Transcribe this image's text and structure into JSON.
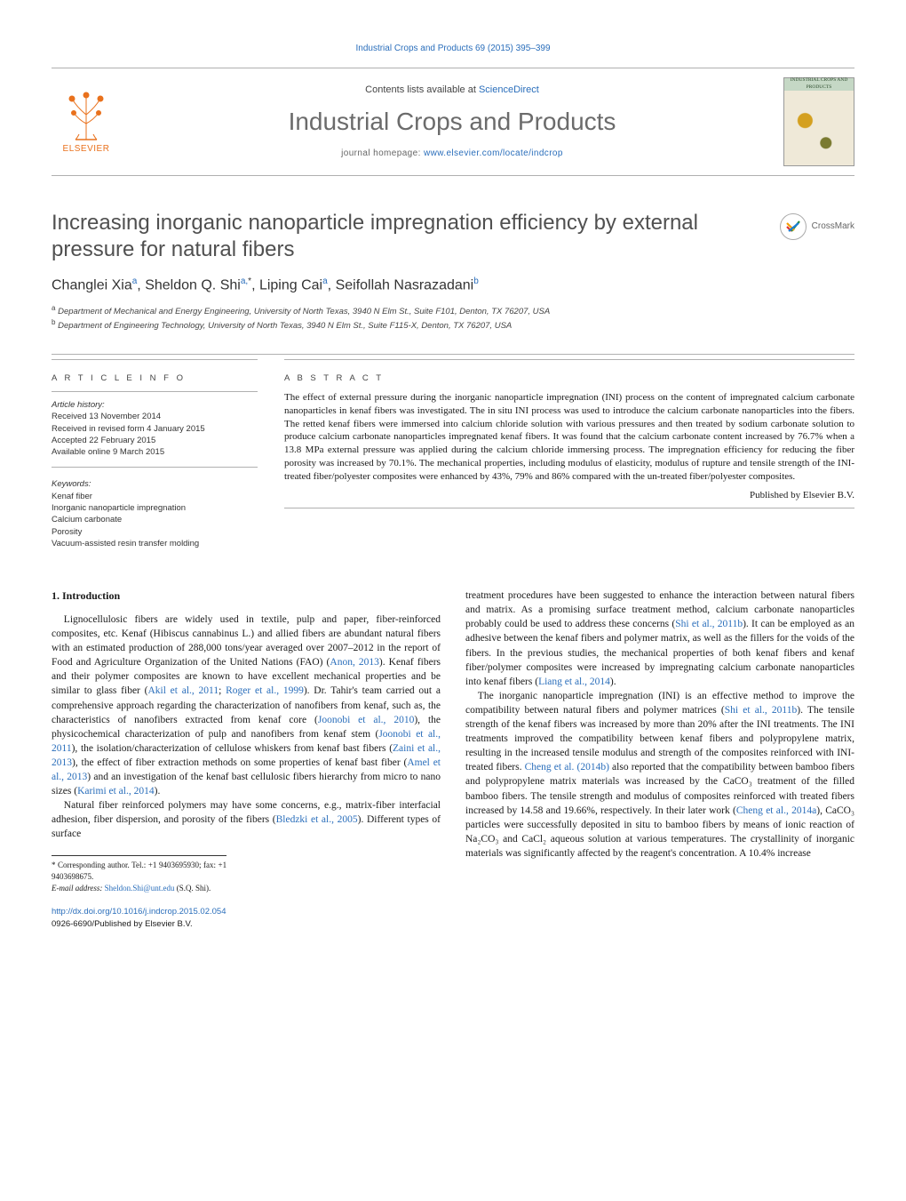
{
  "colors": {
    "link": "#2a6ebb",
    "text": "#1a1a1a",
    "muted": "#6b6b6b",
    "rule": "#b0b0b0",
    "elsevier_orange": "#e9711c"
  },
  "typography": {
    "body_family": "Times New Roman",
    "sans_family": "Arial",
    "title_fontsize_pt": 18,
    "journal_title_fontsize_pt": 21,
    "body_fontsize_pt": 8.6
  },
  "header": {
    "running": "Industrial Crops and Products 69 (2015) 395–399",
    "contents_prefix": "Contents lists available at ",
    "contents_link": "ScienceDirect",
    "journal_title": "Industrial Crops and Products",
    "homepage_prefix": "journal homepage: ",
    "homepage_link": "www.elsevier.com/locate/indcrop",
    "publisher_wordmark": "ELSEVIER",
    "cover_caption": "INDUSTRIAL CROPS AND PRODUCTS"
  },
  "crossmark": {
    "label": "CrossMark"
  },
  "article": {
    "title": "Increasing inorganic nanoparticle impregnation efficiency by external pressure for natural fibers",
    "authors_html": "Changlei Xia<sup>a</sup>, Sheldon Q. Shi<sup>a,</sup><sup class=\"ast\">*</sup>, Liping Cai<sup>a</sup>, Seifollah Nasrazadani<sup>b</sup>",
    "affiliations": [
      "a Department of Mechanical and Energy Engineering, University of North Texas, 3940 N Elm St., Suite F101, Denton, TX 76207, USA",
      "b Department of Engineering Technology, University of North Texas, 3940 N Elm St., Suite F115-X, Denton, TX 76207, USA"
    ]
  },
  "article_info": {
    "heading": "A R T I C L E   I N F O",
    "history_label": "Article history:",
    "history": [
      "Received 13 November 2014",
      "Received in revised form 4 January 2015",
      "Accepted 22 February 2015",
      "Available online 9 March 2015"
    ],
    "keywords_label": "Keywords:",
    "keywords": [
      "Kenaf fiber",
      "Inorganic nanoparticle impregnation",
      "Calcium carbonate",
      "Porosity",
      "Vacuum-assisted resin transfer molding"
    ]
  },
  "abstract": {
    "heading": "A B S T R A C T",
    "text": "The effect of external pressure during the inorganic nanoparticle impregnation (INI) process on the content of impregnated calcium carbonate nanoparticles in kenaf fibers was investigated. The in situ INI process was used to introduce the calcium carbonate nanoparticles into the fibers. The retted kenaf fibers were immersed into calcium chloride solution with various pressures and then treated by sodium carbonate solution to produce calcium carbonate nanoparticles impregnated kenaf fibers. It was found that the calcium carbonate content increased by 76.7% when a 13.8 MPa external pressure was applied during the calcium chloride immersing process. The impregnation efficiency for reducing the fiber porosity was increased by 70.1%. The mechanical properties, including modulus of elasticity, modulus of rupture and tensile strength of the INI-treated fiber/polyester composites were enhanced by 43%, 79% and 86% compared with the un-treated fiber/polyester composites.",
    "published_by": "Published by Elsevier B.V."
  },
  "body": {
    "section_number": "1.",
    "section_title": "Introduction",
    "col1": [
      "Lignocellulosic fibers are widely used in textile, pulp and paper, fiber-reinforced composites, etc. Kenaf (Hibiscus cannabinus L.) and allied fibers are abundant natural fibers with an estimated production of 288,000 tons/year averaged over 2007–2012 in the report of Food and Agriculture Organization of the United Nations (FAO) (",
      "). Kenaf fibers and their polymer composites are known to have excellent mechanical properties and be similar to glass fiber (",
      "; ",
      "). Dr. Tahir's team carried out a comprehensive approach regarding the characterization of nanofibers from kenaf, such as, the characteristics of nanofibers extracted from kenaf core (",
      "), the physicochemical characterization of pulp and nanofibers from kenaf stem (",
      "), the isolation/characterization of cellulose whiskers from kenaf bast fibers (",
      "), the effect of fiber extraction methods on some properties of kenaf bast fiber (",
      ") and an investigation of the kenaf bast cellulosic fibers hierarchy from micro to nano sizes (",
      ").",
      "Natural fiber reinforced polymers may have some concerns, e.g., matrix-fiber interfacial adhesion, fiber dispersion, and porosity of the fibers (",
      "). Different types of surface"
    ],
    "col1_cites": [
      "Anon, 2013",
      "Akil et al., 2011",
      "Roger et al., 1999",
      "Joonobi et al., 2010",
      "Joonobi et al., 2011",
      "Zaini et al., 2013",
      "Amel et al., 2013",
      "Karimi et al., 2014",
      "Bledzki et al., 2005"
    ],
    "col2": [
      "treatment procedures have been suggested to enhance the interaction between natural fibers and matrix. As a promising surface treatment method, calcium carbonate nanoparticles probably could be used to address these concerns (",
      "). It can be employed as an adhesive between the kenaf fibers and polymer matrix, as well as the fillers for the voids of the fibers. In the previous studies, the mechanical properties of both kenaf fibers and kenaf fiber/polymer composites were increased by impregnating calcium carbonate nanoparticles into kenaf fibers (",
      ").",
      "The inorganic nanoparticle impregnation (INI) is an effective method to improve the compatibility between natural fibers and polymer matrices (",
      "). The tensile strength of the kenaf fibers was increased by more than 20% after the INI treatments. The INI treatments improved the compatibility between kenaf fibers and polypropylene matrix, resulting in the increased tensile modulus and strength of the composites reinforced with INI-treated fibers. ",
      " also reported that the compatibility between bamboo fibers and polypropylene matrix materials was increased by the CaCO₃ treatment of the filled bamboo fibers. The tensile strength and modulus of composites reinforced with treated fibers increased by 14.58 and 19.66%, respectively. In their later work (",
      "), CaCO₃ particles were successfully deposited in situ to bamboo fibers by means of ionic reaction of Na₂CO₃ and CaCl₂ aqueous solution at various temperatures. The crystallinity of inorganic materials was significantly affected by the reagent's concentration. A 10.4% increase"
    ],
    "col2_cites": [
      "Shi et al., 2011b",
      "Liang et al., 2014",
      "Shi et al., 2011b",
      "Cheng et al. (2014b)",
      "Cheng et al., 2014a"
    ]
  },
  "footnotes": {
    "corresp": "* Corresponding author. Tel.: +1 9403695930; fax: +1 9403698675.",
    "email_label": "E-mail address: ",
    "email": "Sheldon.Shi@unt.edu",
    "email_suffix": " (S.Q. Shi)."
  },
  "doi": {
    "url": "http://dx.doi.org/10.1016/j.indcrop.2015.02.054",
    "issn_line": "0926-6690/Published by Elsevier B.V."
  }
}
